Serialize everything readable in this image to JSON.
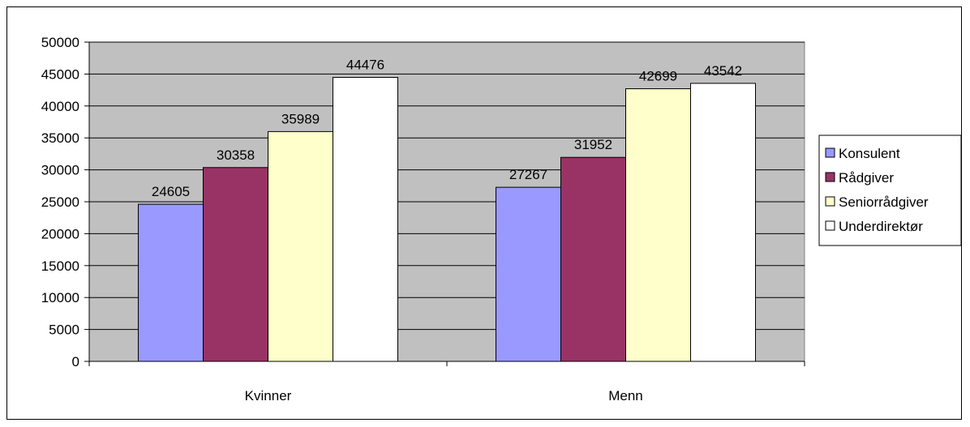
{
  "chart_data": {
    "type": "bar",
    "categories": [
      "Kvinner",
      "Menn"
    ],
    "series": [
      {
        "name": "Konsulent",
        "values": [
          24605,
          27267
        ],
        "color": "#9999FF"
      },
      {
        "name": "Rådgiver",
        "values": [
          30358,
          31952
        ],
        "color": "#993366"
      },
      {
        "name": "Seniorrådgiver",
        "values": [
          35989,
          42699
        ],
        "color": "#FFFFCC"
      },
      {
        "name": "Underdirektør",
        "values": [
          44476,
          43542
        ],
        "color": "#FFFFFF"
      }
    ],
    "yticks": [
      "0",
      "5000",
      "10000",
      "15000",
      "20000",
      "25000",
      "30000",
      "35000",
      "40000",
      "45000",
      "50000"
    ],
    "ylim": [
      0,
      50000
    ],
    "grid": true,
    "plot_background": "#C0C0C0",
    "legend_position": "right",
    "data_labels": true
  }
}
